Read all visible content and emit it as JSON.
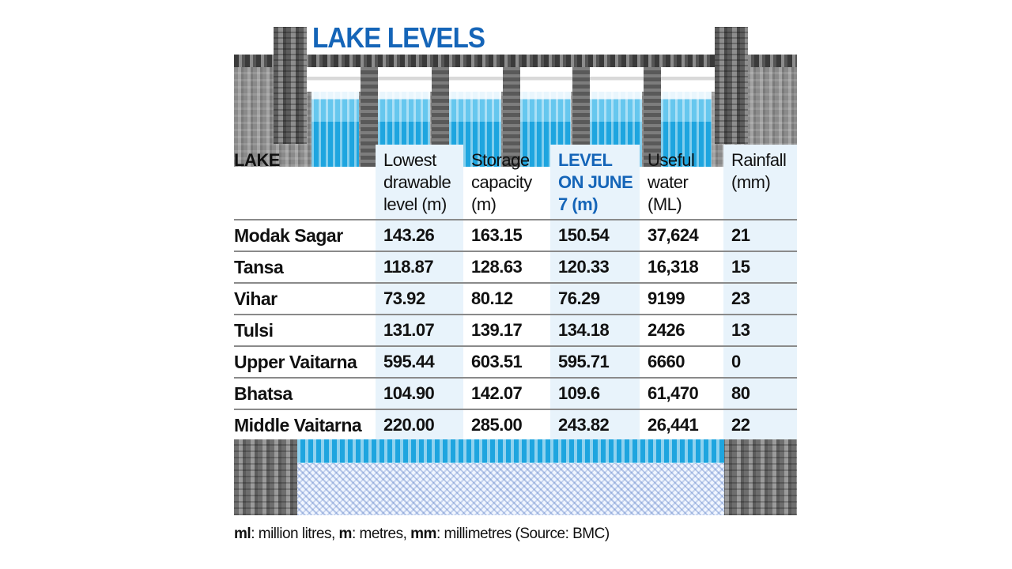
{
  "title": "LAKE LEVELS",
  "table": {
    "headers": [
      "LAKE",
      "Lowest drawable level (m)",
      "Storage capacity (m)",
      "LEVEL ON JUNE 7 (m)",
      "Useful water (ML)",
      "Rainfall (mm)"
    ],
    "rows": [
      [
        "Modak Sagar",
        "143.26",
        "163.15",
        "150.54",
        "37,624",
        "21"
      ],
      [
        "Tansa",
        "118.87",
        "128.63",
        "120.33",
        "16,318",
        "15"
      ],
      [
        "Vihar",
        "73.92",
        "80.12",
        "76.29",
        "9199",
        "23"
      ],
      [
        "Tulsi",
        "131.07",
        "139.17",
        "134.18",
        "2426",
        "13"
      ],
      [
        "Upper Vaitarna",
        "595.44",
        "603.51",
        "595.71",
        "6660",
        "0"
      ],
      [
        "Bhatsa",
        "104.90",
        "142.07",
        "109.6",
        "61,470",
        "80"
      ],
      [
        "Middle Vaitarna",
        "220.00",
        "285.00",
        "243.82",
        "26,441",
        "22"
      ]
    ]
  },
  "footnote": {
    "ml_key": "ml",
    "ml_text": ": million litres,",
    "m_key": "m",
    "m_text": ": metres,",
    "mm_key": "mm",
    "mm_text": ": millimetres (Source: BMC)"
  },
  "colors": {
    "accent_blue": "#1565b8",
    "highlight_column": "#e8f3fb",
    "water": "#1ea5df"
  }
}
